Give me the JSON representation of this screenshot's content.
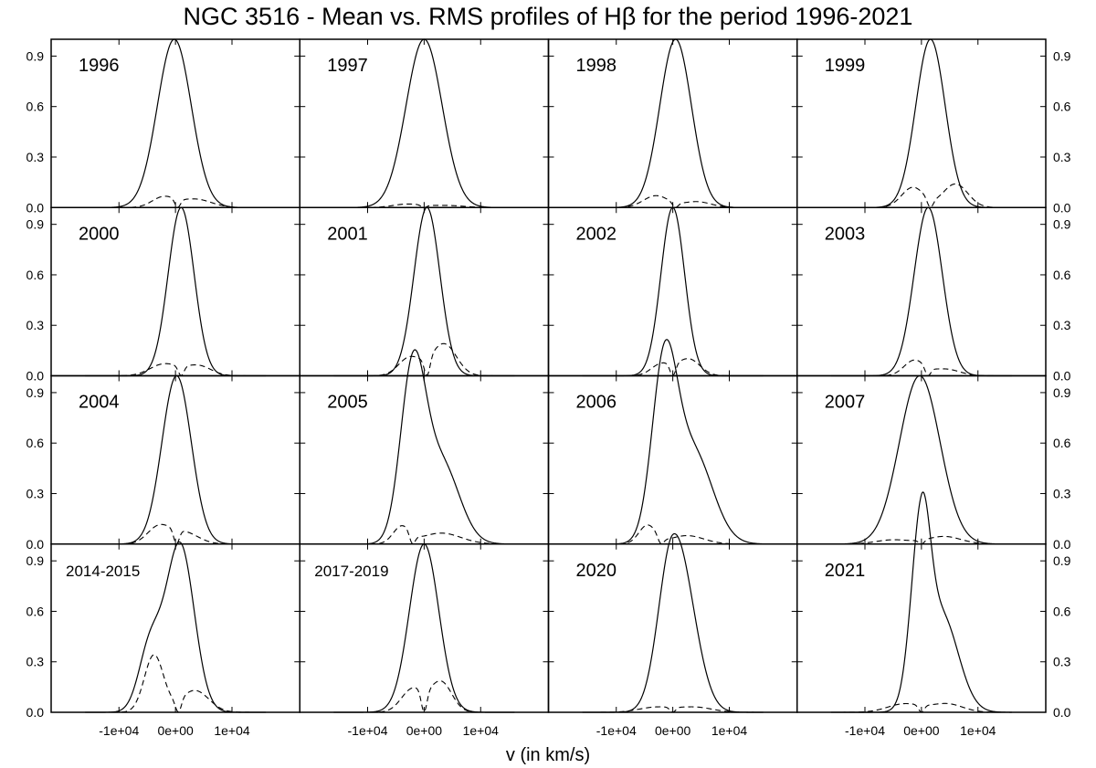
{
  "chart_data": {
    "type": "line",
    "title": "NGC 3516 - Mean vs. RMS profiles of Hβ for the period 1996-2021",
    "xlabel": "v (in km/s)",
    "ylabel": "",
    "xlim": [
      -22000,
      22000
    ],
    "ylim": [
      0,
      1.0
    ],
    "x_ticks": [
      -10000,
      0,
      10000
    ],
    "x_tick_labels": [
      "-1e+04",
      "0e+00",
      "1e+04"
    ],
    "y_ticks": [
      0.0,
      0.3,
      0.6,
      0.9
    ],
    "y_tick_labels": [
      "0.0",
      "0.3",
      "0.6",
      "0.9"
    ],
    "series_legend": {
      "mean": "solid line",
      "rms": "dashed line"
    },
    "panels": [
      {
        "label": "1996",
        "mean": {
          "center": -200,
          "sigma_left": 3000,
          "sigma_right": 3000,
          "shoulder": {
            "center": 0,
            "sigma": 1,
            "amp": 0
          }
        },
        "rms": [
          {
            "center": -2200,
            "sigma": 2000,
            "amp": 0.06
          },
          {
            "center": 3500,
            "sigma": 2800,
            "amp": 0.05
          }
        ],
        "rms_dip": 400
      },
      {
        "label": "1997",
        "mean": {
          "center": 0,
          "sigma_left": 3200,
          "sigma_right": 3200,
          "shoulder": {
            "center": 0,
            "sigma": 1,
            "amp": 0
          }
        },
        "rms": [
          {
            "center": -3000,
            "sigma": 2500,
            "amp": 0.02
          },
          {
            "center": 4000,
            "sigma": 3000,
            "amp": 0.012
          }
        ],
        "rms_dip": 0
      },
      {
        "label": "1998",
        "mean": {
          "center": 500,
          "sigma_left": 2800,
          "sigma_right": 2800,
          "shoulder": {
            "center": 0,
            "sigma": 1,
            "amp": 0
          }
        },
        "rms": [
          {
            "center": -3000,
            "sigma": 2200,
            "amp": 0.07
          },
          {
            "center": 4200,
            "sigma": 2500,
            "amp": 0.035
          }
        ],
        "rms_dip": 500
      },
      {
        "label": "1999",
        "mean": {
          "center": 1600,
          "sigma_left": 2600,
          "sigma_right": 2600,
          "shoulder": {
            "center": 0,
            "sigma": 1,
            "amp": 0
          }
        },
        "rms": [
          {
            "center": -1500,
            "sigma": 2000,
            "amp": 0.12
          },
          {
            "center": 6000,
            "sigma": 2200,
            "amp": 0.14
          }
        ],
        "rms_dip": 1600
      },
      {
        "label": "2000",
        "mean": {
          "center": 1000,
          "sigma_left": 2300,
          "sigma_right": 2300,
          "shoulder": {
            "center": 0,
            "sigma": 1,
            "amp": 0
          }
        },
        "rms": [
          {
            "center": -2000,
            "sigma": 2500,
            "amp": 0.07
          },
          {
            "center": 4000,
            "sigma": 2300,
            "amp": 0.06
          }
        ],
        "rms_dip": 1000
      },
      {
        "label": "2001",
        "mean": {
          "center": 500,
          "sigma_left": 2300,
          "sigma_right": 2300,
          "shoulder": {
            "center": 0,
            "sigma": 1,
            "amp": 0
          }
        },
        "rms": [
          {
            "center": -2500,
            "sigma": 2000,
            "amp": 0.11
          },
          {
            "center": 3500,
            "sigma": 2200,
            "amp": 0.19
          }
        ],
        "rms_dip": 500
      },
      {
        "label": "2002",
        "mean": {
          "center": 0,
          "sigma_left": 2100,
          "sigma_right": 2100,
          "shoulder": {
            "center": 0,
            "sigma": 1,
            "amp": 0
          }
        },
        "rms": [
          {
            "center": -2000,
            "sigma": 1800,
            "amp": 0.07
          },
          {
            "center": 2800,
            "sigma": 2000,
            "amp": 0.1
          }
        ],
        "rms_dip": 0
      },
      {
        "label": "2003",
        "mean": {
          "center": 1200,
          "sigma_left": 2500,
          "sigma_right": 2500,
          "shoulder": {
            "center": 0,
            "sigma": 1,
            "amp": 0
          }
        },
        "rms": [
          {
            "center": -1300,
            "sigma": 1800,
            "amp": 0.09
          },
          {
            "center": 4200,
            "sigma": 2500,
            "amp": 0.04
          }
        ],
        "rms_dip": 1200
      },
      {
        "label": "2004",
        "mean": {
          "center": 200,
          "sigma_left": 2600,
          "sigma_right": 2600,
          "shoulder": {
            "center": 0,
            "sigma": 1,
            "amp": 0
          }
        },
        "rms": [
          {
            "center": -3000,
            "sigma": 2000,
            "amp": 0.1
          },
          {
            "center": 1500,
            "sigma": 2500,
            "amp": 0.07
          }
        ],
        "rms_dip": 200
      },
      {
        "label": "2005",
        "mean": {
          "center": -2000,
          "sigma_left": 2200,
          "sigma_right": 2200,
          "shoulder": {
            "center": 3000,
            "sigma": 3200,
            "amp": 0.48
          }
        },
        "rms": [
          {
            "center": -4000,
            "sigma": 1500,
            "amp": 0.1
          },
          {
            "center": 3000,
            "sigma": 3500,
            "amp": 0.065
          }
        ],
        "rms_dip": -2000
      },
      {
        "label": "2006",
        "mean": {
          "center": -1500,
          "sigma_left": 2200,
          "sigma_right": 2200,
          "shoulder": {
            "center": 3500,
            "sigma": 3500,
            "amp": 0.55
          }
        },
        "rms": [
          {
            "center": -4500,
            "sigma": 1500,
            "amp": 0.11
          },
          {
            "center": 2500,
            "sigma": 3000,
            "amp": 0.05
          }
        ],
        "rms_dip": -2000
      },
      {
        "label": "2007",
        "mean": {
          "center": -300,
          "sigma_left": 3600,
          "sigma_right": 3600,
          "shoulder": {
            "center": 0,
            "sigma": 1,
            "amp": 0
          }
        },
        "rms": [
          {
            "center": -5000,
            "sigma": 3000,
            "amp": 0.025
          },
          {
            "center": 4000,
            "sigma": 3000,
            "amp": 0.045
          }
        ],
        "rms_dip": 0
      },
      {
        "label": "2014-2015",
        "mean": {
          "center": 800,
          "sigma_left": 2500,
          "sigma_right": 2500,
          "shoulder": {
            "center": -4500,
            "sigma": 2000,
            "amp": 0.38
          }
        },
        "rms": [
          {
            "center": -3800,
            "sigma": 1700,
            "amp": 0.34
          },
          {
            "center": 3400,
            "sigma": 2500,
            "amp": 0.13
          }
        ],
        "rms_dip": 500
      },
      {
        "label": "2017-2019",
        "mean": {
          "center": 0,
          "sigma_left": 2600,
          "sigma_right": 2600,
          "shoulder": {
            "center": 0,
            "sigma": 1,
            "amp": 0
          }
        },
        "rms": [
          {
            "center": -2000,
            "sigma": 2000,
            "amp": 0.14
          },
          {
            "center": 3000,
            "sigma": 1900,
            "amp": 0.18
          }
        ],
        "rms_dip": 0
      },
      {
        "label": "2020",
        "mean": {
          "center": 0,
          "sigma_left": 2500,
          "sigma_right": 3000,
          "shoulder": {
            "center": 3500,
            "sigma": 2500,
            "amp": 0.15
          }
        },
        "rms": [
          {
            "center": -3000,
            "sigma": 3000,
            "amp": 0.03
          },
          {
            "center": 4000,
            "sigma": 3000,
            "amp": 0.03
          }
        ],
        "rms_dip": 0
      },
      {
        "label": "2021",
        "mean": {
          "center": 0,
          "sigma_left": 1800,
          "sigma_right": 1500,
          "shoulder": {
            "center": 3500,
            "sigma": 3000,
            "amp": 0.58
          }
        },
        "rms": [
          {
            "center": -3000,
            "sigma": 3000,
            "amp": 0.05
          },
          {
            "center": 4500,
            "sigma": 2800,
            "amp": 0.05
          }
        ],
        "rms_dip": 0
      }
    ]
  }
}
